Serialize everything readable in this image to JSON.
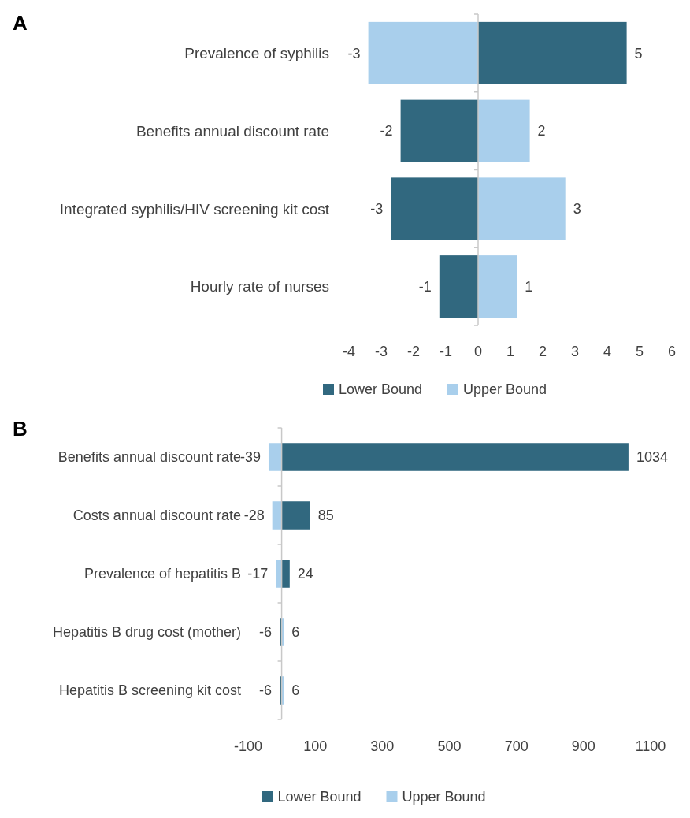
{
  "chart_data": [
    {
      "type": "bar",
      "title": "A",
      "orientation": "horizontal",
      "stacked": true,
      "legend": "bottom",
      "categories": [
        "Prevalence of syphilis",
        "Benefits annual discount rate",
        "Integrated syphilis/HIV screening kit cost",
        "Hourly rate of nurses"
      ],
      "xlim": [
        -4,
        6
      ],
      "xticks": [
        -4,
        -3,
        -2,
        -1,
        0,
        1,
        2,
        3,
        4,
        5,
        6
      ],
      "series": [
        {
          "name": "Lower Bound",
          "color": "#31687f",
          "values": [
            4.6,
            -2.4,
            -2.7,
            -1.2
          ],
          "value_labels": [
            "5",
            "-2",
            "-3",
            "-1"
          ]
        },
        {
          "name": "Upper Bound",
          "color": "#a9cfec",
          "values": [
            -3.4,
            1.6,
            2.7,
            1.2
          ],
          "value_labels": [
            "-3",
            "2",
            "3",
            "1"
          ]
        }
      ]
    },
    {
      "type": "bar",
      "title": "B",
      "orientation": "horizontal",
      "stacked": true,
      "legend": "bottom",
      "categories": [
        "Benefits annual discount rate",
        "Costs annual discount rate",
        "Prevalence of hepatitis B",
        "Hepatitis B drug cost (mother)",
        "Hepatitis B screening kit cost"
      ],
      "xlim": [
        -100,
        1100
      ],
      "xticks": [
        -100,
        100,
        300,
        500,
        700,
        900,
        1100
      ],
      "series": [
        {
          "name": "Lower Bound",
          "color": "#31687f",
          "values": [
            1034,
            85,
            24,
            -6,
            -6
          ],
          "value_labels": [
            "1034",
            "85",
            "24",
            "-6",
            "-6"
          ]
        },
        {
          "name": "Upper Bound",
          "color": "#a9cfec",
          "values": [
            -39,
            -28,
            -17,
            6,
            6
          ],
          "value_labels": [
            "-39",
            "-28",
            "-17",
            "6",
            "6"
          ]
        }
      ]
    }
  ]
}
